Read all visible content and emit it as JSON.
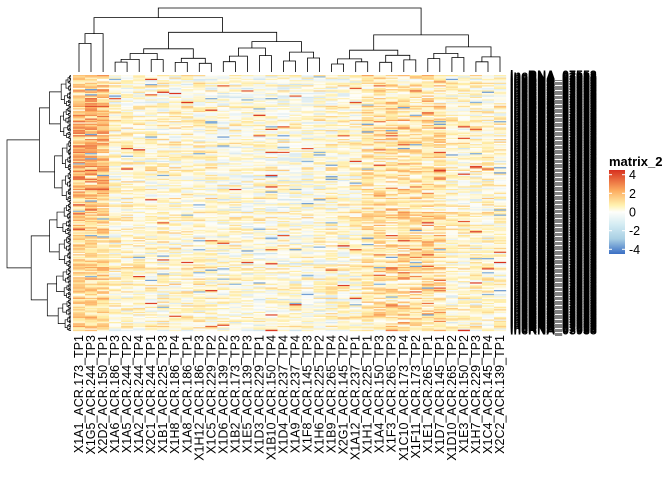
{
  "chart_data": {
    "type": "heatmap",
    "title": "",
    "legend": {
      "title": "matrix_2",
      "ticks": [
        4,
        2,
        0,
        -2,
        -4
      ],
      "range": [
        -4.5,
        4.5
      ],
      "colors": {
        "low": "#3A6FC4",
        "mid_low": "#C9E4EF",
        "mid": "#FEFEFA",
        "mid_high": "#FFE9A0",
        "high": "#D7301F"
      },
      "placement": "right"
    },
    "columns": [
      "X1A1_ACR.173_TP1",
      "X1G5_ACR.244_TP3",
      "X2D2_ACR.150_TP1",
      "X1A6_ACR.186_TP3",
      "X1A5_ACR.244_TP2",
      "X1A2_ACR.244_TP4",
      "X2C1_ACR.244_TP1",
      "X1B1_ACR.225_TP3",
      "X1H8_ACR.186_TP4",
      "X1A8_ACR.186_TP1",
      "X1H12_ACR.186_TP3",
      "X1C5_ACR.229_TP2",
      "X1D6_ACR.139_TP2",
      "X1B2_ACR.173_TP3",
      "X1E5_ACR.139_TP3",
      "X1D3_ACR.229_TP1",
      "X1B10_ACR.150_TP4",
      "X1D4_ACR.237_TP4",
      "X1A9_ACR.237_TP4",
      "X1F8_ACR.145_TP3",
      "X1H6_ACR.225_TP2",
      "X1B9_ACR.265_TP4",
      "X2G1_ACR.145_TP2",
      "X1A12_ACR.237_TP1",
      "X1H1_ACR.225_TP1",
      "X1A4_ACR.150_TP3",
      "X1F3_ACR.265_TP3",
      "X1C10_ACR.173_TP4",
      "X1F11_ACR.173_TP2",
      "X1E1_ACR.265_TP1",
      "X1D7_ACR.145_TP1",
      "X1D10_ACR.265_TP2",
      "X1E3_ACR.150_TP2",
      "X1H7_ACR.229_TP3",
      "X1C4_ACR.145_TP4",
      "X2C2_ACR.139_TP1"
    ],
    "row_labels_visible": [
      "lncRNA_07553",
      "lncRNA_03938"
    ],
    "n_rows": 200,
    "value_range": [
      -4.5,
      4.5
    ],
    "column_dendrogram": true,
    "row_dendrogram": true,
    "notes": "Row labels are overplotted and illegible except fragments at top and bottom."
  }
}
